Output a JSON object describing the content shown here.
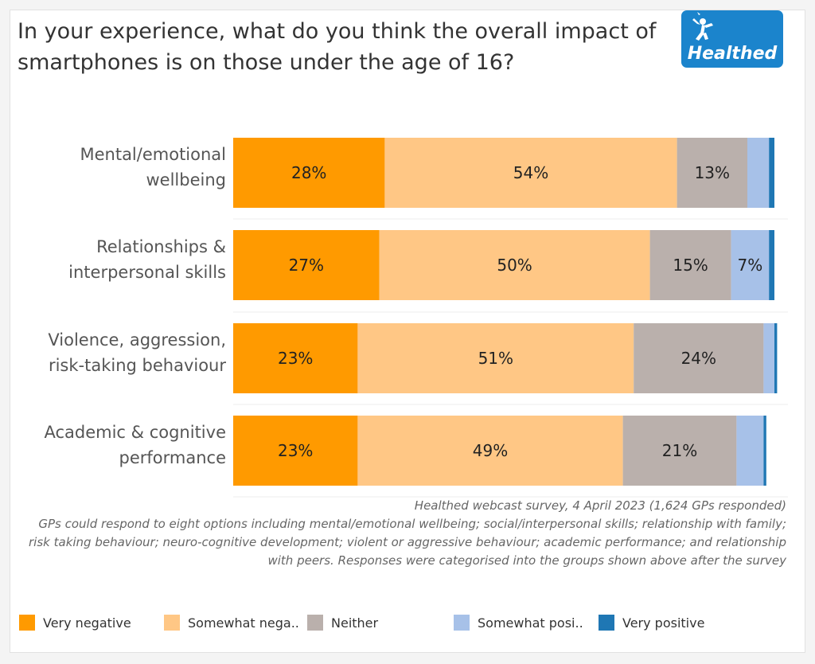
{
  "title": "In your experience, what do you think the overall impact of smartphones is on those under the age of 16?",
  "logo": {
    "text": "Healthed",
    "icon": "hermes-figure-icon"
  },
  "colors": {
    "very_negative": "#FF9A00",
    "somewhat_negative": "#FFC785",
    "neither": "#BAB0AC",
    "somewhat_positive": "#A7C1E8",
    "very_positive": "#1F77B4"
  },
  "chart_data": {
    "type": "bar",
    "orientation": "horizontal",
    "stacked": true,
    "categories": [
      [
        "Mental/emotional",
        "wellbeing"
      ],
      [
        "Relationships &",
        "interpersonal skills"
      ],
      [
        "Violence, aggression,",
        "risk-taking behaviour"
      ],
      [
        "Academic & cognitive",
        "performance"
      ]
    ],
    "series": [
      {
        "name": "Very negative",
        "values": [
          28,
          27,
          23,
          23
        ],
        "labels": [
          "28%",
          "27%",
          "23%",
          "23%"
        ]
      },
      {
        "name": "Somewhat negative",
        "values": [
          54,
          50,
          51,
          49
        ],
        "labels": [
          "54%",
          "50%",
          "51%",
          "49%"
        ]
      },
      {
        "name": "Neither",
        "values": [
          13,
          15,
          24,
          21
        ],
        "labels": [
          "13%",
          "15%",
          "24%",
          "21%"
        ]
      },
      {
        "name": "Somewhat positive",
        "values": [
          4,
          7,
          2,
          5
        ],
        "labels": [
          "",
          "7%",
          "",
          ""
        ]
      },
      {
        "name": "Very positive",
        "values": [
          1,
          1,
          0.5,
          0.5
        ],
        "labels": [
          "",
          "",
          "",
          ""
        ]
      }
    ],
    "xlim": [
      0,
      100
    ],
    "grid": false,
    "legend": "bottom"
  },
  "footnote": {
    "source": "Healthed webcast survey, 4 April 2023 (1,624 GPs responded)",
    "note": "GPs could respond to eight options including mental/emotional wellbeing; social/interpersonal skills; relationship with family; risk taking behaviour; neuro-cognitive development; violent or aggressive behaviour; academic performance; and relationship with peers. Responses were categorised into the groups shown above after the survey"
  },
  "legend": [
    {
      "label": "Very negative",
      "color_key": "very_negative"
    },
    {
      "label": "Somewhat nega..",
      "color_key": "somewhat_negative"
    },
    {
      "label": "Neither",
      "color_key": "neither"
    },
    {
      "label": "Somewhat posi..",
      "color_key": "somewhat_positive"
    },
    {
      "label": "Very positive",
      "color_key": "very_positive"
    }
  ]
}
